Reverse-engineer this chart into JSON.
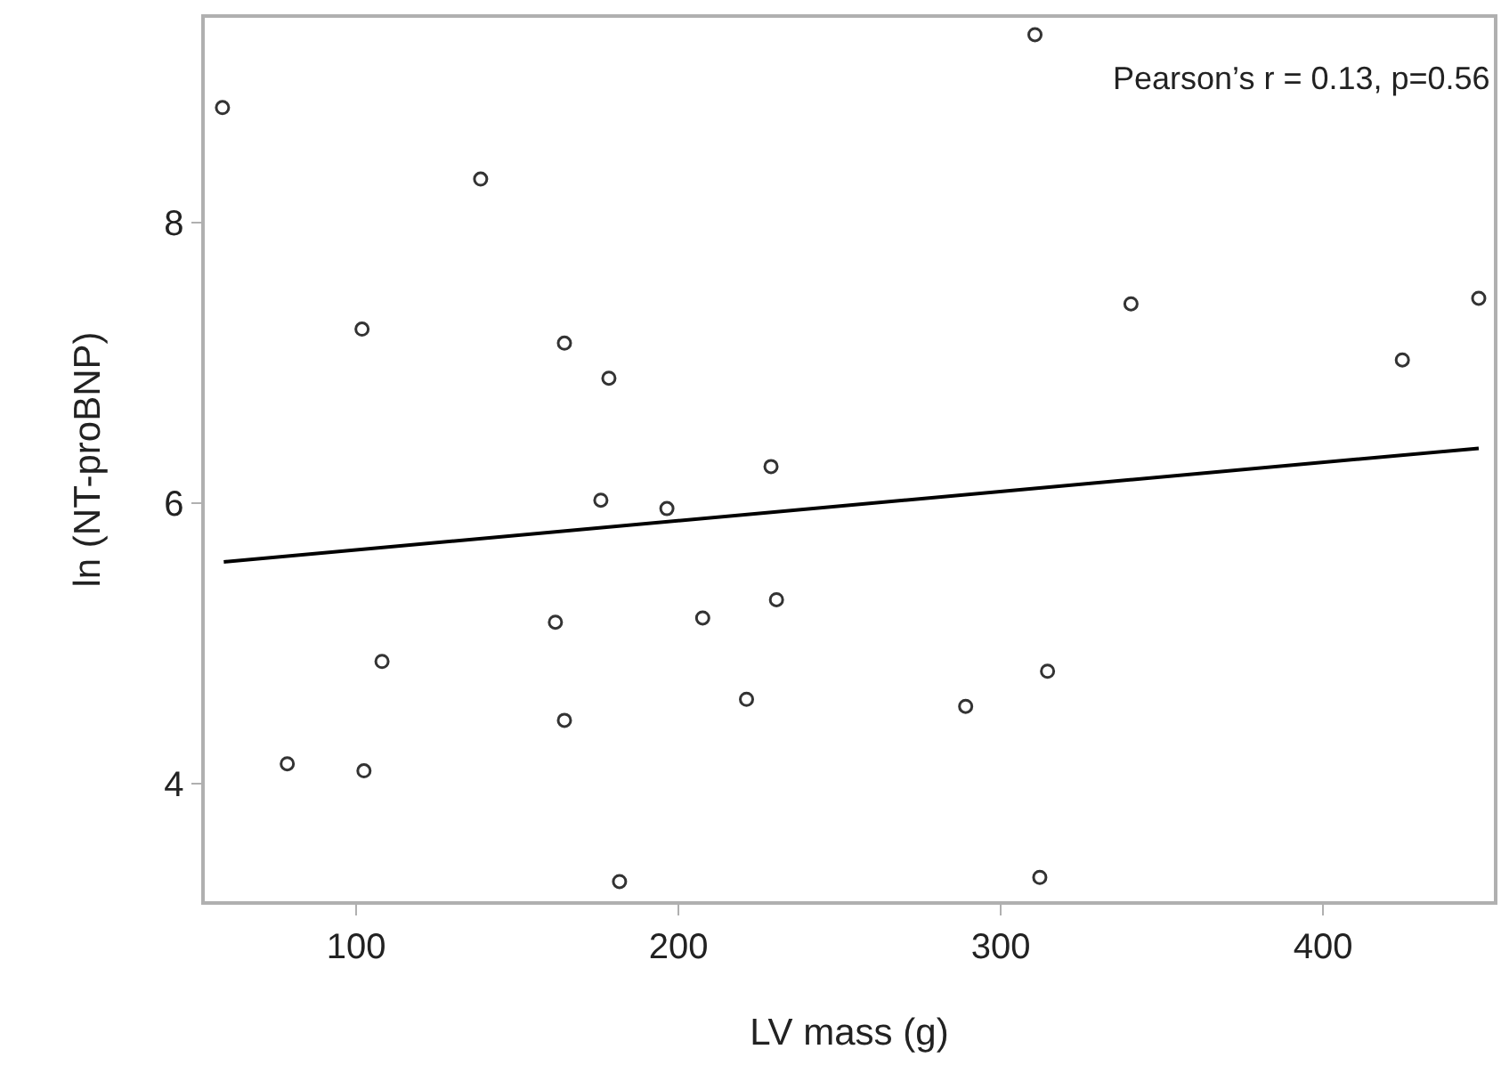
{
  "chart_data": {
    "type": "scatter",
    "xlabel": "LV mass (g)",
    "ylabel": "ln (NT-proBNP)",
    "annotations": [
      "Pearson’s r = 0.13, p=0.56"
    ],
    "xlim": [
      53,
      453
    ],
    "ylim": [
      3.16,
      9.46
    ],
    "xticks": [
      100,
      200,
      300,
      400
    ],
    "yticks": [
      4,
      6,
      8
    ],
    "marker": "circle",
    "series": [
      {
        "color": "#333333",
        "x": [
          58.5,
          138.6,
          101.8,
          164.6,
          178.4,
          175.9,
          196.4,
          228.7,
          161.8,
          207.5,
          230.4,
          108.0,
          221.1,
          164.6,
          78.6,
          102.4,
          181.7,
          314.5,
          289.1,
          312.1,
          310.6,
          340.4,
          448.3,
          424.6
        ],
        "values": [
          8.82,
          8.31,
          7.24,
          7.14,
          6.89,
          6.02,
          5.96,
          6.26,
          5.15,
          5.18,
          5.31,
          4.87,
          4.6,
          4.45,
          4.14,
          4.09,
          3.3,
          4.8,
          4.55,
          3.33,
          9.34,
          7.42,
          7.46,
          7.02
        ]
      },
      {
        "type": "line",
        "color": "#000000",
        "x": [
          58.9,
          448.3
        ],
        "values": [
          5.58,
          6.39
        ],
        "marker": "none",
        "line_style": "solid"
      }
    ]
  }
}
